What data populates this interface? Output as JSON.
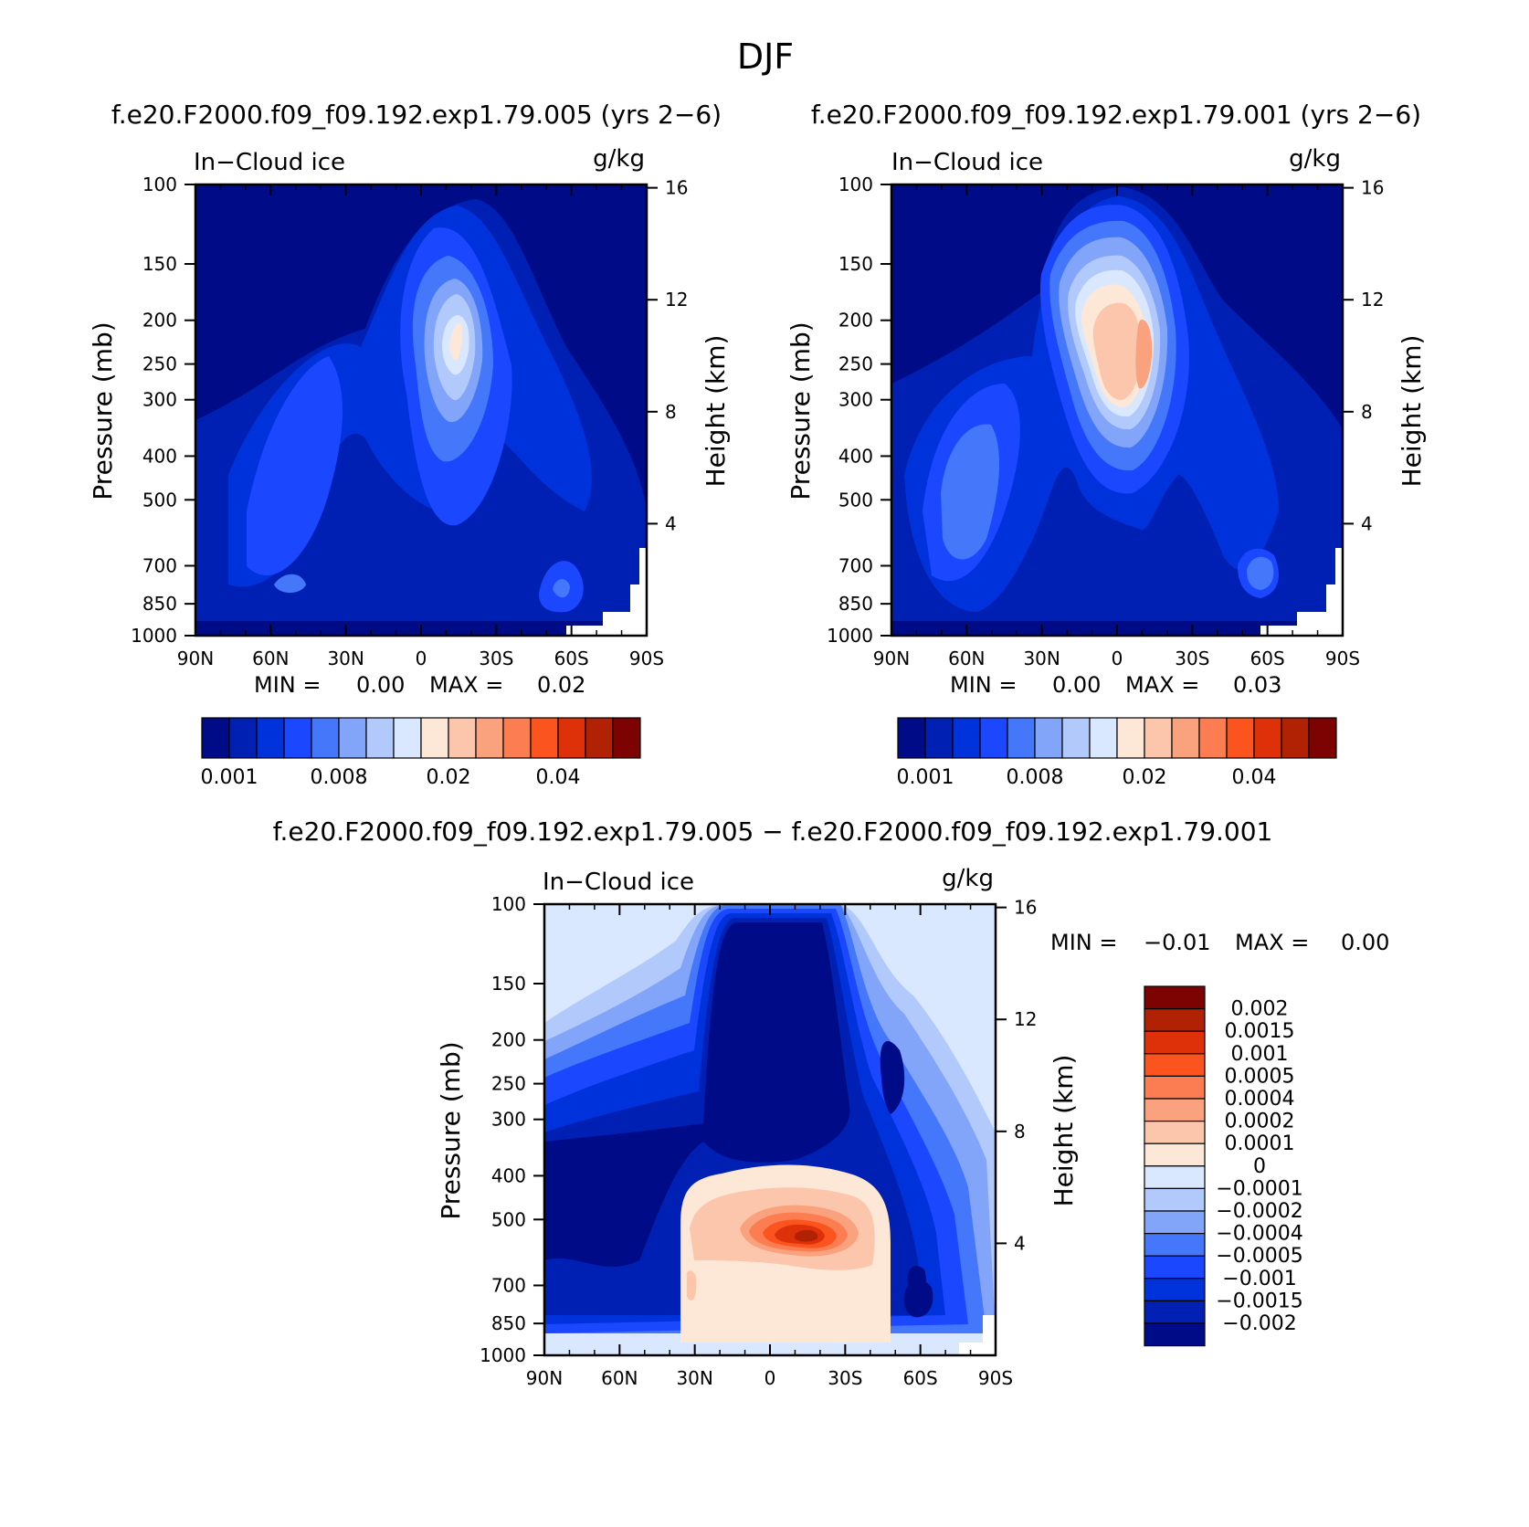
{
  "page_title": "DJF",
  "diff_title": "f.e20.F2000.f09_f09.192.exp1.79.005 − f.e20.F2000.f09_f09.192.exp1.79.001",
  "color_levels": [
    "#000b87",
    "#0020b3",
    "#0032dc",
    "#1a47ff",
    "#4477fa",
    "#82a5fa",
    "#b2c9fb",
    "#d9e8fe",
    "#fde7d7",
    "#fcc6ac",
    "#faa27d",
    "#fb7d51",
    "#fb541f",
    "#df3109",
    "#b12205",
    "#7d0202"
  ],
  "chart_data": [
    {
      "type": "contour",
      "id": "top-left",
      "title": "f.e20.F2000.f09_f09.192.exp1.79.005 (yrs 2−6)",
      "left_label": "In−Cloud ice",
      "right_label": "g/kg",
      "xlabel": "",
      "ylabel": "Pressure (mb)",
      "y2label": "Height (km)",
      "x_ticks": [
        "90N",
        "60N",
        "30N",
        "0",
        "30S",
        "60S",
        "90S"
      ],
      "y_ticks": [
        100,
        150,
        200,
        250,
        300,
        400,
        500,
        700,
        850,
        1000
      ],
      "y2_ticks": [
        4,
        8,
        12,
        16
      ],
      "ylim": [
        1000,
        100
      ],
      "stats": {
        "min_label": "MIN =",
        "min": "0.00",
        "max_label": "MAX =",
        "max": "0.02"
      },
      "colorbar": {
        "orientation": "horizontal",
        "labels": [
          "0.001",
          "0.008",
          "0.02",
          "0.04"
        ]
      },
      "blobs": [
        {
          "lat": -3,
          "p": 250,
          "level": 7
        },
        {
          "lat": -5,
          "p": 220,
          "level": 8
        },
        {
          "lat": 70,
          "p": 650,
          "level": 4
        },
        {
          "lat": -55,
          "p": 760,
          "level": 4
        }
      ]
    },
    {
      "type": "contour",
      "id": "top-right",
      "title": "f.e20.F2000.f09_f09.192.exp1.79.001 (yrs 2−6)",
      "left_label": "In−Cloud ice",
      "right_label": "g/kg",
      "xlabel": "",
      "ylabel": "Pressure (mb)",
      "y2label": "Height (km)",
      "x_ticks": [
        "90N",
        "60N",
        "30N",
        "0",
        "30S",
        "60S",
        "90S"
      ],
      "y_ticks": [
        100,
        150,
        200,
        250,
        300,
        400,
        500,
        700,
        850,
        1000
      ],
      "y2_ticks": [
        4,
        8,
        12,
        16
      ],
      "ylim": [
        1000,
        100
      ],
      "stats": {
        "min_label": "MIN =",
        "min": "0.00",
        "max_label": "MAX =",
        "max": "0.03"
      },
      "colorbar": {
        "orientation": "horizontal",
        "labels": [
          "0.001",
          "0.008",
          "0.02",
          "0.04"
        ]
      },
      "blobs": [
        {
          "lat": -5,
          "p": 250,
          "level": 9
        },
        {
          "lat": -8,
          "p": 230,
          "level": 10
        },
        {
          "lat": 70,
          "p": 480,
          "level": 5
        },
        {
          "lat": -55,
          "p": 800,
          "level": 5
        }
      ]
    },
    {
      "type": "contour",
      "id": "bottom",
      "title": "",
      "left_label": "In−Cloud ice",
      "right_label": "g/kg",
      "xlabel": "",
      "ylabel": "Pressure (mb)",
      "y2label": "Height (km)",
      "x_ticks": [
        "90N",
        "60N",
        "30N",
        "0",
        "30S",
        "60S",
        "90S"
      ],
      "y_ticks": [
        100,
        150,
        200,
        250,
        300,
        400,
        500,
        700,
        850,
        1000
      ],
      "y2_ticks": [
        4,
        8,
        12,
        16
      ],
      "ylim": [
        1000,
        100
      ],
      "stats": {
        "min_label": "MIN =",
        "min": "−0.01",
        "max_label": "MAX =",
        "max": "0.00"
      },
      "colorbar": {
        "orientation": "vertical",
        "labels": [
          "0.002",
          "0.0015",
          "0.001",
          "0.0005",
          "0.0004",
          "0.0002",
          "0.0001",
          "0",
          "−0.0001",
          "−0.0002",
          "−0.0004",
          "−0.0005",
          "−0.001",
          "−0.0015",
          "−0.002"
        ]
      },
      "blobs": [
        {
          "lat": -10,
          "p": 570,
          "level": 12
        },
        {
          "lat": 3,
          "p": 570,
          "level": 11
        },
        {
          "lat": -57,
          "p": 760,
          "level": 2
        }
      ]
    }
  ]
}
